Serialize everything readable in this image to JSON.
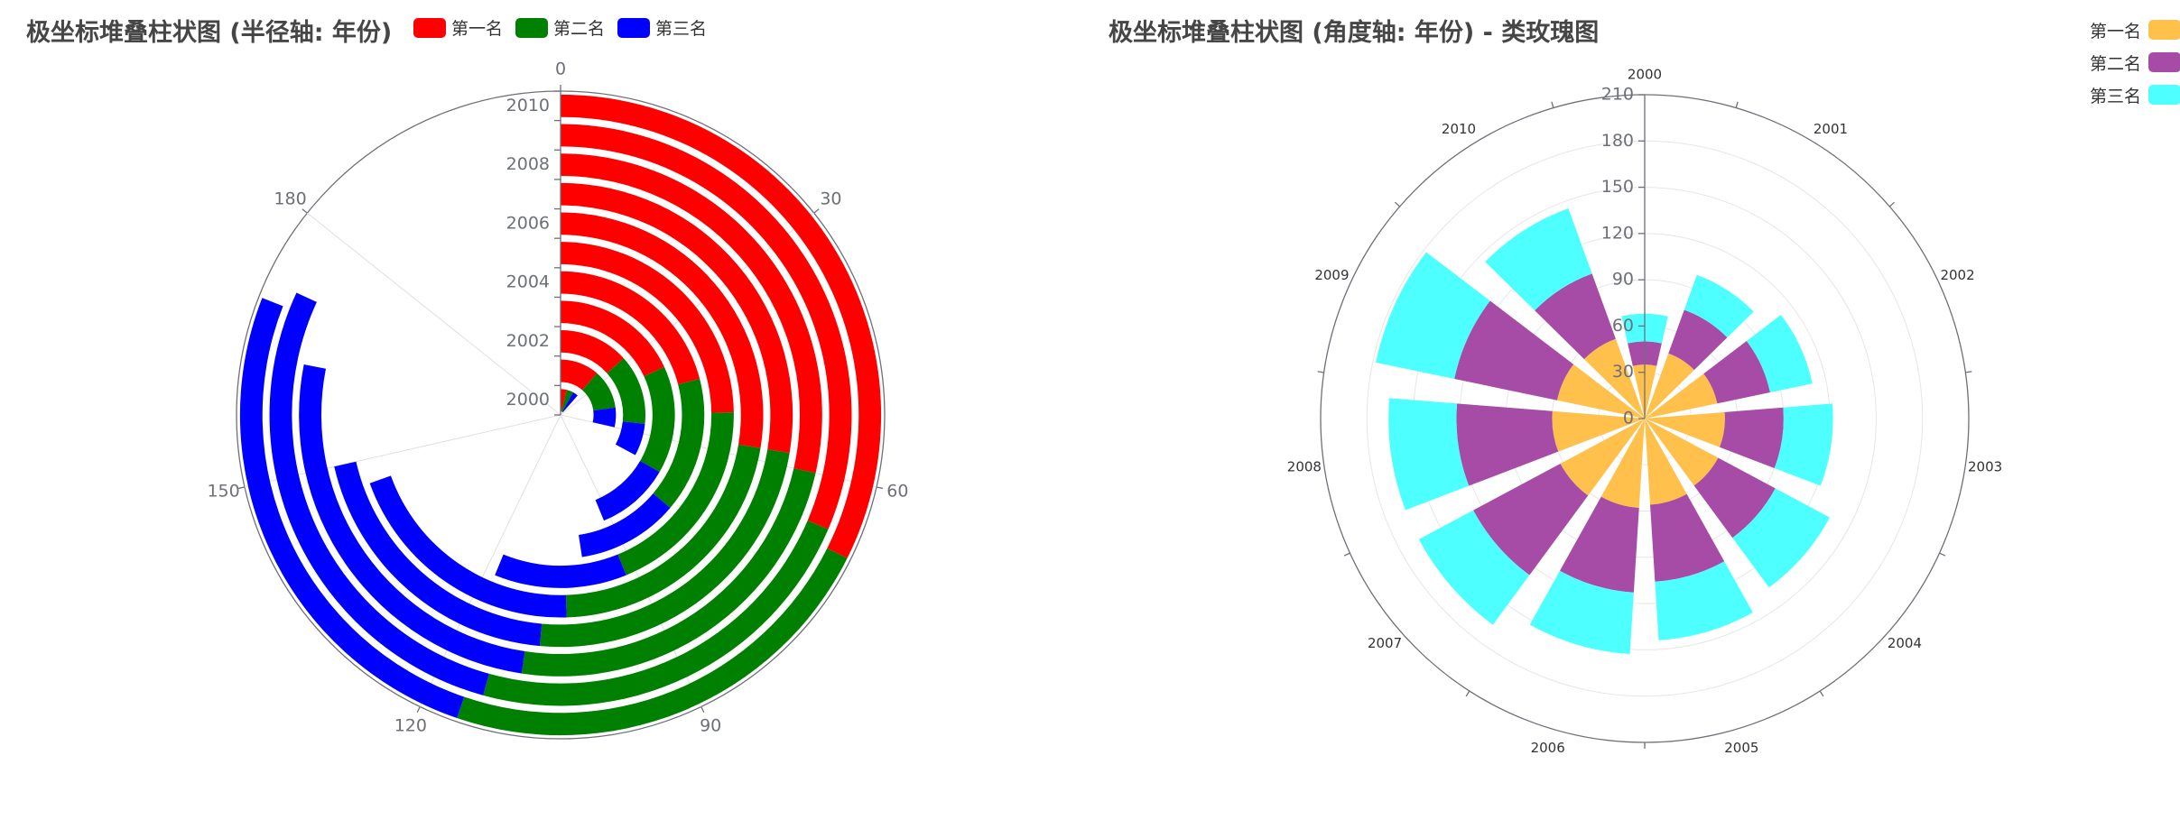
{
  "chart_data": [
    {
      "type": "bar",
      "subtype": "polar-stacked-radius",
      "title": "极坐标堆叠柱状图 (半径轴: 年份)",
      "categories": [
        "2000",
        "2001",
        "2002",
        "2003",
        "2004",
        "2005",
        "2006",
        "2007",
        "2008",
        "2009",
        "2010"
      ],
      "radius_tick_labels": [
        "2000",
        "2002",
        "2004",
        "2006",
        "2008",
        "2010"
      ],
      "angle_ticks": [
        0,
        30,
        60,
        90,
        120,
        150,
        180
      ],
      "angle_max": 210,
      "series": [
        {
          "name": "第一名",
          "color": "#ff0000",
          "values": [
            8,
            24,
            28,
            38,
            44,
            52,
            58,
            58,
            60,
            66,
            68
          ]
        },
        {
          "name": "第二名",
          "color": "#008000",
          "values": [
            9,
            24,
            28,
            32,
            32,
            40,
            46,
            50,
            50,
            48,
            48
          ]
        },
        {
          "name": "第三名",
          "color": "#0000ff",
          "values": [
            7,
            12,
            13,
            22,
            24,
            26,
            42,
            42,
            54,
            58,
            54
          ]
        }
      ],
      "legend": "top-left"
    },
    {
      "type": "bar",
      "subtype": "polar-stacked-angle-rose",
      "title": "极坐标堆叠柱状图 (角度轴: 年份) - 类玫瑰图",
      "categories": [
        "2000",
        "2001",
        "2002",
        "2003",
        "2004",
        "2005",
        "2006",
        "2007",
        "2008",
        "2009",
        "2010"
      ],
      "radius_ticks": [
        0,
        30,
        60,
        90,
        120,
        150,
        180,
        210
      ],
      "ylim": [
        0,
        210
      ],
      "series": [
        {
          "name": "第一名",
          "color": "#ffc04c",
          "values": [
            35,
            45,
            48,
            52,
            54,
            56,
            58,
            62,
            60,
            58,
            55
          ]
        },
        {
          "name": "第二名",
          "color": "#a64ca6",
          "values": [
            15,
            30,
            35,
            38,
            42,
            50,
            55,
            64,
            62,
            68,
            45
          ]
        },
        {
          "name": "第三名",
          "color": "#4dffff",
          "values": [
            18,
            24,
            28,
            32,
            40,
            38,
            40,
            40,
            44,
            52,
            45
          ]
        }
      ],
      "legend": "top-right"
    }
  ]
}
